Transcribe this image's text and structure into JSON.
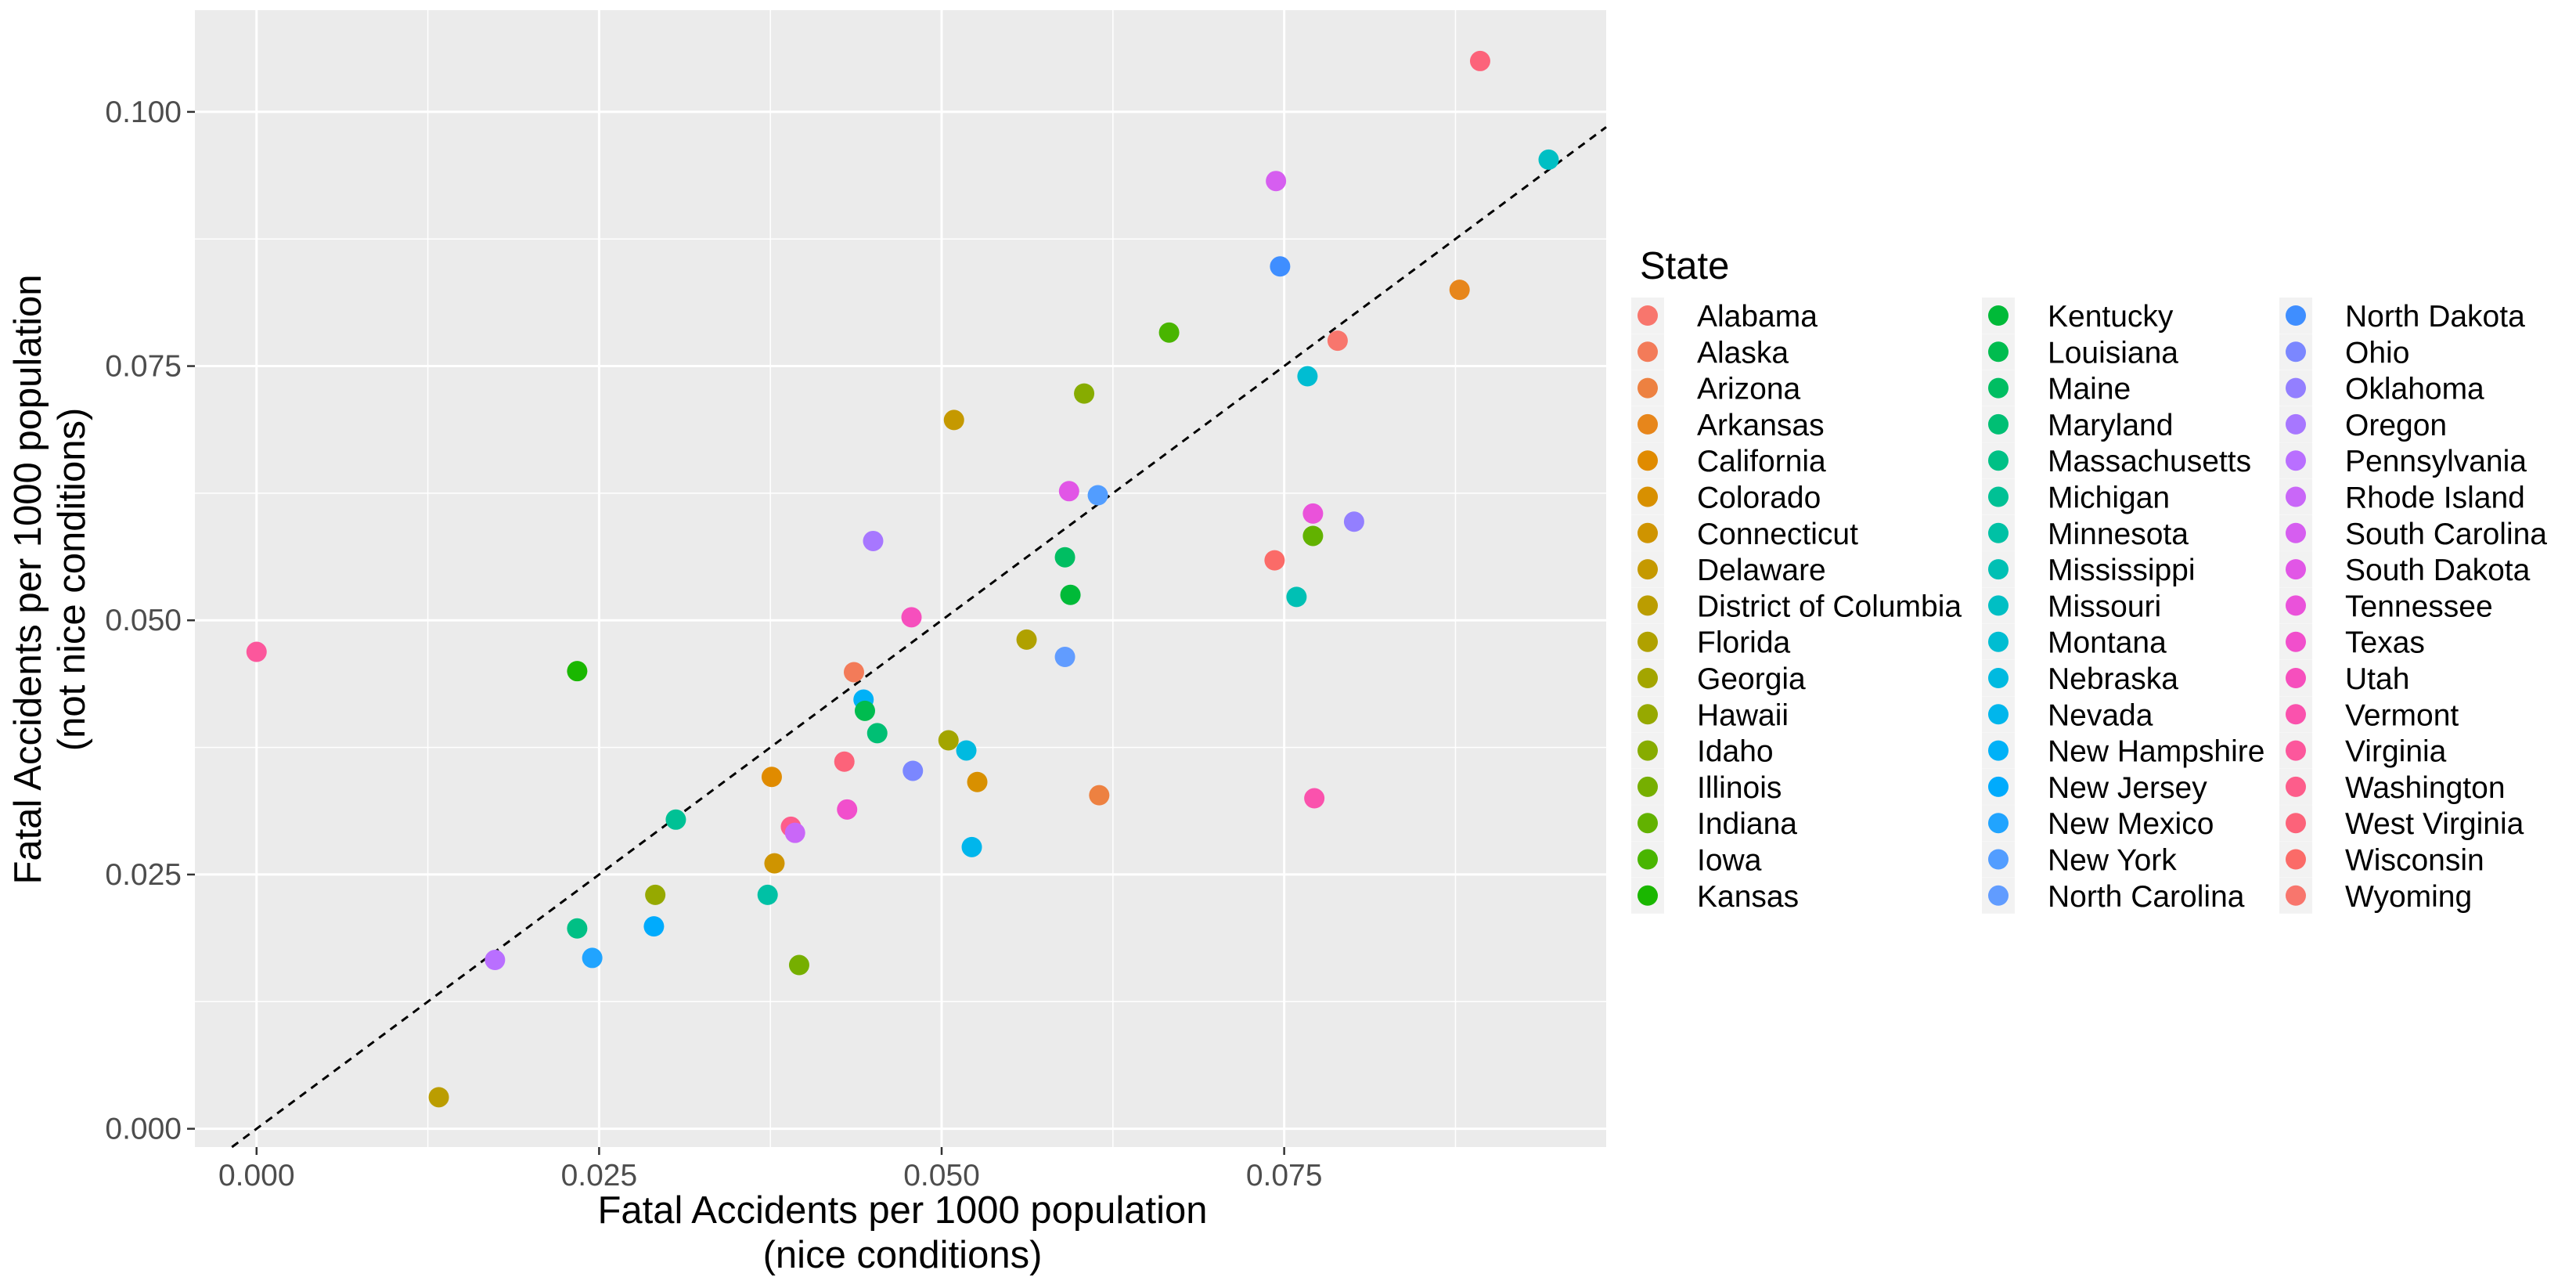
{
  "chart_data": {
    "type": "scatter",
    "xlabel": [
      "Fatal Accidents per 1000 population",
      "(nice conditions)"
    ],
    "ylabel": [
      "Fatal Accidents per 1000 population",
      "(not nice conditions)"
    ],
    "xlim": [
      -0.0045,
      0.0985
    ],
    "ylim": [
      -0.0018,
      0.11
    ],
    "x_ticks": [
      0.0,
      0.025,
      0.05,
      0.075
    ],
    "x_tick_labels": [
      "0.000",
      "0.025",
      "0.050",
      "0.075"
    ],
    "y_ticks": [
      0.0,
      0.025,
      0.05,
      0.075,
      0.1
    ],
    "y_tick_labels": [
      "0.000",
      "0.025",
      "0.050",
      "0.075",
      "0.100"
    ],
    "grid": true,
    "reference_line": {
      "style": "dashed",
      "slope": 1,
      "intercept": 0
    },
    "legend": {
      "title": "State",
      "placement": "right",
      "columns": 3,
      "entries": [
        {
          "name": "Alabama",
          "color": "#F8766D"
        },
        {
          "name": "Alaska",
          "color": "#F37B59"
        },
        {
          "name": "Arizona",
          "color": "#ED8141"
        },
        {
          "name": "Arkansas",
          "color": "#E7861B"
        },
        {
          "name": "California",
          "color": "#E08B00"
        },
        {
          "name": "Colorado",
          "color": "#D89000"
        },
        {
          "name": "Connecticut",
          "color": "#CF9400"
        },
        {
          "name": "Delaware",
          "color": "#C59900"
        },
        {
          "name": "District of Columbia",
          "color": "#BB9D00"
        },
        {
          "name": "Florida",
          "color": "#B0A100"
        },
        {
          "name": "Georgia",
          "color": "#A3A500"
        },
        {
          "name": "Hawaii",
          "color": "#96A900"
        },
        {
          "name": "Idaho",
          "color": "#87AC00"
        },
        {
          "name": "Illinois",
          "color": "#76AF00"
        },
        {
          "name": "Indiana",
          "color": "#62B200"
        },
        {
          "name": "Iowa",
          "color": "#49B500"
        },
        {
          "name": "Kansas",
          "color": "#1AB700"
        },
        {
          "name": "Kentucky",
          "color": "#00BA38"
        },
        {
          "name": "Louisiana",
          "color": "#00BC4F"
        },
        {
          "name": "Maine",
          "color": "#00BE62"
        },
        {
          "name": "Maryland",
          "color": "#00BF74"
        },
        {
          "name": "Massachusetts",
          "color": "#00C085"
        },
        {
          "name": "Michigan",
          "color": "#00C195"
        },
        {
          "name": "Minnesota",
          "color": "#00C1A5"
        },
        {
          "name": "Mississippi",
          "color": "#00C0B4"
        },
        {
          "name": "Missouri",
          "color": "#00BFC4"
        },
        {
          "name": "Montana",
          "color": "#00BDD2"
        },
        {
          "name": "Nebraska",
          "color": "#00BAE0"
        },
        {
          "name": "Nevada",
          "color": "#00B6EC"
        },
        {
          "name": "New Hampshire",
          "color": "#00B1F7"
        },
        {
          "name": "New Jersey",
          "color": "#00ABFD"
        },
        {
          "name": "New Mexico",
          "color": "#21A4FF"
        },
        {
          "name": "New York",
          "color": "#529DFF"
        },
        {
          "name": "North Carolina",
          "color": "#619CFF"
        },
        {
          "name": "North Dakota",
          "color": "#3F8EFF"
        },
        {
          "name": "Ohio",
          "color": "#7B87FF"
        },
        {
          "name": "Oklahoma",
          "color": "#937FFF"
        },
        {
          "name": "Oregon",
          "color": "#A777FF"
        },
        {
          "name": "Pennsylvania",
          "color": "#B96FFF"
        },
        {
          "name": "Rhode Island",
          "color": "#C967F8"
        },
        {
          "name": "South Carolina",
          "color": "#D65EF0"
        },
        {
          "name": "South Dakota",
          "color": "#E156E6"
        },
        {
          "name": "Tennessee",
          "color": "#EA52DA"
        },
        {
          "name": "Texas",
          "color": "#F14FCC"
        },
        {
          "name": "Utah",
          "color": "#F64FBD"
        },
        {
          "name": "Vermont",
          "color": "#FA52AD"
        },
        {
          "name": "Virginia",
          "color": "#FC579C"
        },
        {
          "name": "Washington",
          "color": "#FD5D8B"
        },
        {
          "name": "West Virginia",
          "color": "#FC637A"
        },
        {
          "name": "Wisconsin",
          "color": "#FB6B68"
        },
        {
          "name": "Wyoming",
          "color": "#F8766D"
        }
      ]
    },
    "points": [
      {
        "x": 0.0,
        "y": 0.0469,
        "color": "#FC579C"
      },
      {
        "x": 0.0133,
        "y": 0.0031,
        "color": "#BB9D00"
      },
      {
        "x": 0.0174,
        "y": 0.0166,
        "color": "#B96FFF"
      },
      {
        "x": 0.0234,
        "y": 0.0197,
        "color": "#00C085"
      },
      {
        "x": 0.0234,
        "y": 0.045,
        "color": "#1AB700"
      },
      {
        "x": 0.0245,
        "y": 0.0168,
        "color": "#21A4FF"
      },
      {
        "x": 0.029,
        "y": 0.0199,
        "color": "#00ABFD"
      },
      {
        "x": 0.0291,
        "y": 0.023,
        "color": "#96A900"
      },
      {
        "x": 0.0306,
        "y": 0.0304,
        "color": "#00C195"
      },
      {
        "x": 0.0373,
        "y": 0.023,
        "color": "#00C1A5"
      },
      {
        "x": 0.0376,
        "y": 0.0346,
        "color": "#E08B00"
      },
      {
        "x": 0.0378,
        "y": 0.0261,
        "color": "#CF9400"
      },
      {
        "x": 0.039,
        "y": 0.0297,
        "color": "#FD5D8B"
      },
      {
        "x": 0.0393,
        "y": 0.0291,
        "color": "#C967F8"
      },
      {
        "x": 0.0396,
        "y": 0.0161,
        "color": "#76AF00"
      },
      {
        "x": 0.0429,
        "y": 0.0361,
        "color": "#FC637A"
      },
      {
        "x": 0.0431,
        "y": 0.0314,
        "color": "#F14FCC"
      },
      {
        "x": 0.0436,
        "y": 0.0449,
        "color": "#F37B59"
      },
      {
        "x": 0.0443,
        "y": 0.0422,
        "color": "#00B1F7"
      },
      {
        "x": 0.0444,
        "y": 0.0411,
        "color": "#00BC4F"
      },
      {
        "x": 0.045,
        "y": 0.0578,
        "color": "#A777FF"
      },
      {
        "x": 0.0453,
        "y": 0.0389,
        "color": "#00BF74"
      },
      {
        "x": 0.0478,
        "y": 0.0503,
        "color": "#F64FBD"
      },
      {
        "x": 0.0479,
        "y": 0.0352,
        "color": "#7B87FF"
      },
      {
        "x": 0.0505,
        "y": 0.0382,
        "color": "#A3A500"
      },
      {
        "x": 0.0509,
        "y": 0.0697,
        "color": "#C59900"
      },
      {
        "x": 0.0518,
        "y": 0.0372,
        "color": "#00BAE0"
      },
      {
        "x": 0.0522,
        "y": 0.0277,
        "color": "#00B6EC"
      },
      {
        "x": 0.0526,
        "y": 0.0341,
        "color": "#D89000"
      },
      {
        "x": 0.0562,
        "y": 0.0481,
        "color": "#B0A100"
      },
      {
        "x": 0.059,
        "y": 0.0562,
        "color": "#00BE62"
      },
      {
        "x": 0.059,
        "y": 0.0464,
        "color": "#619CFF"
      },
      {
        "x": 0.0593,
        "y": 0.0627,
        "color": "#E156E6"
      },
      {
        "x": 0.0594,
        "y": 0.0525,
        "color": "#00BA38"
      },
      {
        "x": 0.0604,
        "y": 0.0723,
        "color": "#87AC00"
      },
      {
        "x": 0.0614,
        "y": 0.0623,
        "color": "#529DFF"
      },
      {
        "x": 0.0615,
        "y": 0.0328,
        "color": "#ED8141"
      },
      {
        "x": 0.0666,
        "y": 0.0783,
        "color": "#49B500"
      },
      {
        "x": 0.0743,
        "y": 0.0559,
        "color": "#FB6B68"
      },
      {
        "x": 0.0744,
        "y": 0.0932,
        "color": "#D65EF0"
      },
      {
        "x": 0.0747,
        "y": 0.0848,
        "color": "#3F8EFF"
      },
      {
        "x": 0.0759,
        "y": 0.0523,
        "color": "#00C0B4"
      },
      {
        "x": 0.0767,
        "y": 0.074,
        "color": "#00BDD2"
      },
      {
        "x": 0.0771,
        "y": 0.0583,
        "color": "#62B200"
      },
      {
        "x": 0.0771,
        "y": 0.0605,
        "color": "#EA52DA"
      },
      {
        "x": 0.0772,
        "y": 0.0325,
        "color": "#FA52AD"
      },
      {
        "x": 0.0789,
        "y": 0.0775,
        "color": "#F8766D"
      },
      {
        "x": 0.0801,
        "y": 0.0597,
        "color": "#937FFF"
      },
      {
        "x": 0.0878,
        "y": 0.0825,
        "color": "#E7861B"
      },
      {
        "x": 0.0893,
        "y": 0.105,
        "color": "#FC637A"
      },
      {
        "x": 0.0943,
        "y": 0.0953,
        "color": "#00BFC4"
      }
    ],
    "colors": {
      "panel_background": "#EBEBEB",
      "gridline": "#FFFFFF",
      "axis_text": "#4D4D4D",
      "title_text": "#000000"
    }
  }
}
